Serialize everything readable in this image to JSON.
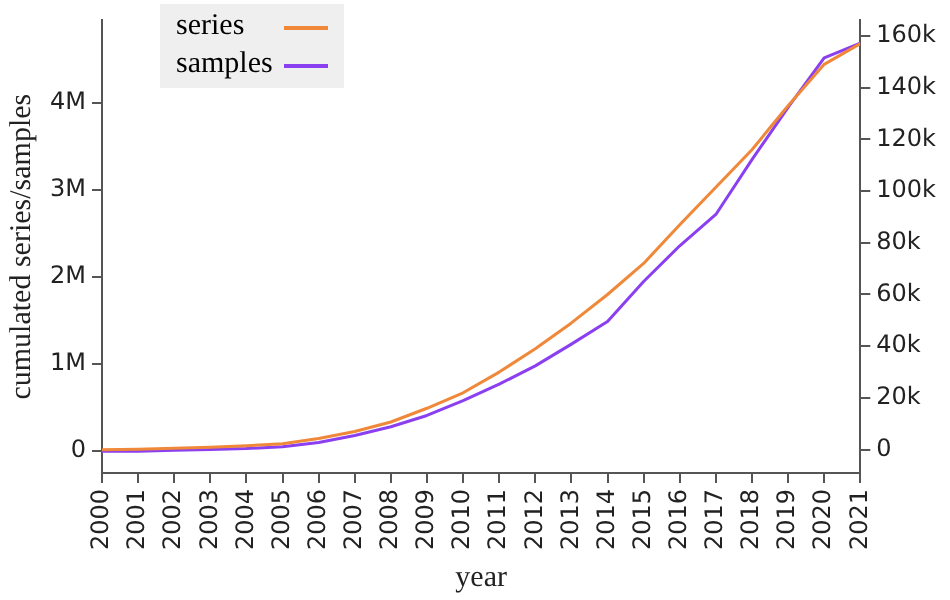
{
  "chart_data": {
    "type": "line",
    "xlabel": "year",
    "ylabel": "cumulated series/samples",
    "x": [
      2000,
      2001,
      2002,
      2003,
      2004,
      2005,
      2006,
      2007,
      2008,
      2009,
      2010,
      2011,
      2012,
      2013,
      2014,
      2015,
      2016,
      2017,
      2018,
      2019,
      2020,
      2021
    ],
    "series": [
      {
        "name": "series",
        "color": "#f0883a",
        "axis": "y2",
        "values": [
          0,
          200,
          500,
          900,
          1500,
          2300,
          4300,
          7000,
          10700,
          16000,
          22000,
          30000,
          39000,
          49000,
          60000,
          72000,
          87000,
          101500,
          116000,
          133000,
          149000,
          157000
        ]
      },
      {
        "name": "samples",
        "color": "#8a3ff0",
        "axis": "y",
        "values": [
          0,
          0,
          10000,
          20000,
          30000,
          50000,
          100000,
          180000,
          280000,
          410000,
          580000,
          770000,
          980000,
          1230000,
          1490000,
          1950000,
          2360000,
          2720000,
          3350000,
          3950000,
          4520000,
          4690000
        ]
      }
    ],
    "xlim": [
      2000,
      2021
    ],
    "xticks": [
      2000,
      2001,
      2002,
      2003,
      2004,
      2005,
      2006,
      2007,
      2008,
      2009,
      2010,
      2011,
      2012,
      2013,
      2014,
      2015,
      2016,
      2017,
      2018,
      2019,
      2020,
      2021
    ],
    "ylim": [
      -250000,
      4950000
    ],
    "yticks": [
      0,
      {
        "value": 1000000,
        "label": "1M"
      },
      {
        "value": 2000000,
        "label": "2M"
      },
      {
        "value": 3000000,
        "label": "3M"
      },
      {
        "value": 4000000,
        "label": "4M"
      }
    ],
    "y2lim": [
      -9000,
      166000
    ],
    "y2ticks": [
      0,
      {
        "value": 20000,
        "label": "20k"
      },
      {
        "value": 40000,
        "label": "40k"
      },
      {
        "value": 60000,
        "label": "60k"
      },
      {
        "value": 80000,
        "label": "80k"
      },
      {
        "value": 100000,
        "label": "100k"
      },
      {
        "value": 120000,
        "label": "120k"
      },
      {
        "value": 140000,
        "label": "140k"
      },
      {
        "value": 160000,
        "label": "160k"
      }
    ],
    "grid": false,
    "legend": "top left",
    "marker": "none",
    "line_style": "solid"
  }
}
